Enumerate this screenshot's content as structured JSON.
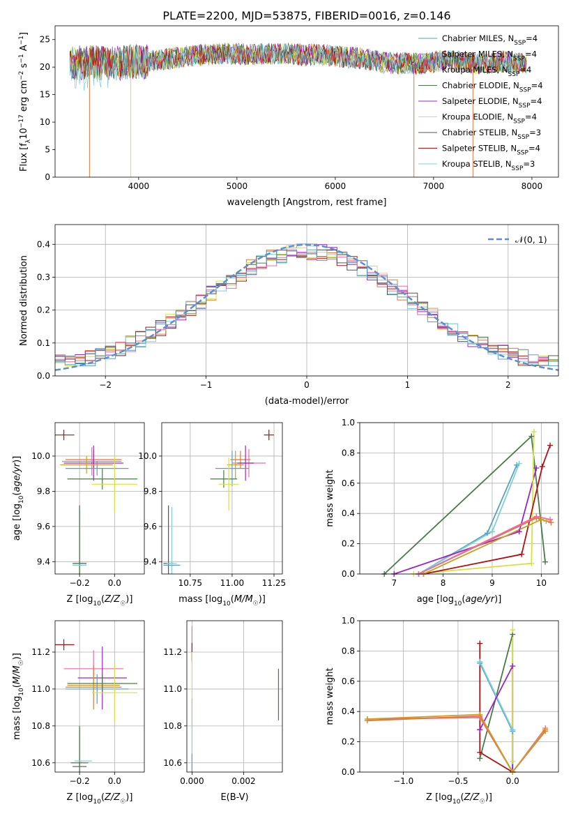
{
  "page_title": "PLATE=2200, MJD=53875, FIBERID=0016, z=0.146",
  "colors": {
    "Chabrier MILES": "#56a0c0",
    "Salpeter MILES": "#999999",
    "Kroupa MILES": "#c8a020",
    "Chabrier ELODIE": "#4a7a4a",
    "Salpeter ELODIE": "#a020c8",
    "Kroupa ELODIE": "#d8e040",
    "Chabrier STELIB": "#555555",
    "Salpeter STELIB": "#b01010",
    "Kroupa STELIB": "#7ed0d8",
    "Orange": "#e8743a",
    "Pink": "#ee6aa8",
    "Green": "#5a8a5a",
    "Normal": "#5b8dd6"
  },
  "chart_data": [
    {
      "type": "line",
      "title": "PLATE=2200, MJD=53875, FIBERID=0016, z=0.146",
      "xlabel": "wavelength [Angstrom, rest frame]",
      "ylabel": "Flux [fλ10⁻¹⁷ erg cm⁻² s⁻¹ A⁻¹]",
      "ylabel_parts": [
        "Flux [f",
        "λ",
        "10",
        "−17",
        " erg cm",
        "−2",
        " s",
        "−1",
        " A",
        "−1",
        "]"
      ],
      "xlim": [
        3150,
        8270
      ],
      "ylim": [
        0,
        27.5
      ],
      "xticks": [
        4000,
        5000,
        6000,
        7000,
        8000
      ],
      "yticks": [
        0,
        5,
        10,
        15,
        20,
        25
      ],
      "legend_position": "top-right",
      "series": [
        {
          "name": "Chabrier MILES, N_SSP=4",
          "label_main": "Chabrier MILES, N",
          "label_sub": "SSP",
          "label_tail": "=4",
          "color": "#56a0c0"
        },
        {
          "name": "Salpeter MILES, N_SSP=4",
          "label_main": "Salpeter MILES, N",
          "label_sub": "SSP",
          "label_tail": "=4",
          "color": "#999999"
        },
        {
          "name": "Kroupa MILES, N_SSP=4",
          "label_main": "Kroupa MILES, N",
          "label_sub": "SSP",
          "label_tail": "=4",
          "color": "#c8a020"
        },
        {
          "name": "Chabrier ELODIE, N_SSP=4",
          "label_main": "Chabrier ELODIE, N",
          "label_sub": "SSP",
          "label_tail": "=4",
          "color": "#4a7a4a"
        },
        {
          "name": "Salpeter ELODIE, N_SSP=4",
          "label_main": "Salpeter ELODIE, N",
          "label_sub": "SSP",
          "label_tail": "=4",
          "color": "#a020c8"
        },
        {
          "name": "Kroupa ELODIE, N_SSP=4",
          "label_main": "Kroupa ELODIE, N",
          "label_sub": "SSP",
          "label_tail": "=4",
          "color": "#d8e040"
        },
        {
          "name": "Chabrier STELIB, N_SSP=3",
          "label_main": "Chabrier STELIB, N",
          "label_sub": "SSP",
          "label_tail": "=3",
          "color": "#555555"
        },
        {
          "name": "Salpeter STELIB, N_SSP=4",
          "label_main": "Salpeter STELIB, N",
          "label_sub": "SSP",
          "label_tail": "=4",
          "color": "#b01010"
        },
        {
          "name": "Kroupa STELIB, N_SSP=3",
          "label_main": "Kroupa STELIB, N",
          "label_sub": "SSP",
          "label_tail": "=3",
          "color": "#7ed0d8"
        }
      ],
      "spectrum_envelope": {
        "x": [
          3300,
          3500,
          3700,
          3900,
          4100,
          4300,
          4500,
          4700,
          4900,
          5100,
          5300,
          5500,
          5700,
          5900,
          6100,
          6300,
          6500,
          6700,
          6900,
          7100,
          7300,
          7500,
          7700,
          7900,
          8000
        ],
        "y": [
          20.5,
          21.0,
          20.5,
          21.0,
          21.0,
          21.5,
          22.0,
          22.3,
          22.5,
          22.3,
          22.4,
          22.5,
          22.2,
          22.2,
          21.8,
          21.5,
          20.8,
          20.7,
          20.6,
          21.2,
          21.0,
          20.5,
          21.0,
          20.6,
          20.5
        ]
      },
      "noise_amplitude": 2.0,
      "drops": [
        {
          "x": 3500,
          "color": "#e8743a"
        },
        {
          "x": 3920,
          "color": "#d8e040"
        },
        {
          "x": 6800,
          "color": "#e8743a"
        },
        {
          "x": 7400,
          "color": "#e8743a"
        }
      ]
    },
    {
      "type": "histogram",
      "xlabel": "(data-model)/error",
      "ylabel": "Normed distribution",
      "xlim": [
        -2.5,
        2.5
      ],
      "ylim": [
        0,
        0.46
      ],
      "xticks": [
        -2,
        -1,
        0,
        1,
        2
      ],
      "xtick_labels": [
        "−2",
        "−1",
        "0",
        "1",
        "2"
      ],
      "yticks": [
        0.0,
        0.1,
        0.2,
        0.3,
        0.4
      ],
      "grid": true,
      "bin_width": 0.1,
      "legend_label": "𝒩(0, 1)",
      "legend_position": "top-right",
      "normal_curve": {
        "mean": 0,
        "sigma": 1,
        "color": "#5b8dd6"
      },
      "series_colors": [
        "#b01010",
        "#e8743a",
        "#a020c8",
        "#d8e040",
        "#7ed0d8",
        "#ee6aa8",
        "#555555",
        "#56a0c0"
      ]
    },
    {
      "type": "errorbar",
      "xlabel": "Z [log10(Z/Z☉)]",
      "ylabel": "age  [log10(age/yr)]",
      "xlim": [
        -0.34,
        0.17
      ],
      "ylim": [
        9.33,
        10.19
      ],
      "xticks": [
        -0.2,
        0.0
      ],
      "xtick_labels": [
        "−0.2",
        "0.0"
      ],
      "yticks": [
        9.4,
        9.6,
        9.8,
        10.0
      ],
      "grid": true,
      "points": [
        {
          "x": -0.2,
          "y": 9.39,
          "xerr": 0.04,
          "yerr": 0.33,
          "color": "#555555"
        },
        {
          "x": -0.2,
          "y": 9.39,
          "xerr": 0.03,
          "yerr": 0.3,
          "color": "#4a7a4a"
        },
        {
          "x": -0.2,
          "y": 9.38,
          "xerr": 0.04,
          "yerr": 0.0,
          "color": "#7ed0d8"
        },
        {
          "x": -0.29,
          "y": 10.12,
          "xerr": 0.06,
          "yerr": 0.03,
          "color": "#b01010"
        },
        {
          "x": -0.12,
          "y": 9.98,
          "xerr": 0.16,
          "yerr": 0.05,
          "color": "#e8743a"
        },
        {
          "x": -0.13,
          "y": 9.97,
          "xerr": 0.17,
          "yerr": 0.08,
          "color": "#ee6aa8"
        },
        {
          "x": -0.12,
          "y": 9.96,
          "xerr": 0.17,
          "yerr": 0.1,
          "color": "#a020c8"
        },
        {
          "x": -0.16,
          "y": 9.95,
          "xerr": 0.15,
          "yerr": 0.05,
          "color": "#c8a020"
        },
        {
          "x": -0.1,
          "y": 9.93,
          "xerr": 0.18,
          "yerr": 0.04,
          "color": "#56a0c0"
        },
        {
          "x": -0.07,
          "y": 9.87,
          "xerr": 0.2,
          "yerr": 0.06,
          "color": "#4a7a4a"
        },
        {
          "x": 0.0,
          "y": 9.84,
          "xerr": 0.13,
          "yerr": 0.16,
          "color": "#d8e040"
        }
      ]
    },
    {
      "type": "errorbar",
      "xlabel": "mass [log10(M/M☉)]",
      "ylabel": "",
      "xlim": [
        10.58,
        11.3
      ],
      "ylim": [
        9.33,
        10.19
      ],
      "xticks": [
        10.75,
        11.0,
        11.25
      ],
      "xtick_labels": [
        "10.75",
        "11.00",
        "11.25"
      ],
      "yticks": [
        9.4,
        9.6,
        9.8,
        10.0
      ],
      "grid": true,
      "points": [
        {
          "x": 10.62,
          "y": 9.39,
          "xerr": 0.03,
          "yerr": 0.33,
          "color": "#555555"
        },
        {
          "x": 10.64,
          "y": 9.39,
          "xerr": 0.03,
          "yerr": 0.32,
          "color": "#7ed0d8"
        },
        {
          "x": 10.64,
          "y": 9.38,
          "xerr": 0.05,
          "yerr": 0.0,
          "color": "#56a0c0"
        },
        {
          "x": 11.22,
          "y": 10.12,
          "xerr": 0.03,
          "yerr": 0.03,
          "color": "#b01010"
        },
        {
          "x": 11.05,
          "y": 9.98,
          "xerr": 0.06,
          "yerr": 0.05,
          "color": "#e8743a"
        },
        {
          "x": 11.1,
          "y": 9.96,
          "xerr": 0.1,
          "yerr": 0.08,
          "color": "#ee6aa8"
        },
        {
          "x": 11.08,
          "y": 9.96,
          "xerr": 0.05,
          "yerr": 0.1,
          "color": "#a020c8"
        },
        {
          "x": 11.02,
          "y": 9.95,
          "xerr": 0.05,
          "yerr": 0.08,
          "color": "#c8a020"
        },
        {
          "x": 11.0,
          "y": 9.93,
          "xerr": 0.1,
          "yerr": 0.1,
          "color": "#56a0c0"
        },
        {
          "x": 10.95,
          "y": 9.87,
          "xerr": 0.08,
          "yerr": 0.05,
          "color": "#4a7a4a"
        },
        {
          "x": 10.98,
          "y": 9.84,
          "xerr": 0.06,
          "yerr": 0.15,
          "color": "#d8e040"
        }
      ]
    },
    {
      "type": "line",
      "xlabel": "age  [log10(age/yr)]",
      "ylabel": "mass weight",
      "xlim": [
        6.3,
        10.35
      ],
      "ylim": [
        0,
        1.0
      ],
      "xticks": [
        7,
        8,
        9,
        10
      ],
      "yticks": [
        0.0,
        0.2,
        0.4,
        0.6,
        0.8,
        1.0
      ],
      "grid": true,
      "series": [
        {
          "color": "#4a7a4a",
          "x": [
            6.8,
            9.8,
            10.08
          ],
          "y": [
            0.0,
            0.91,
            0.08
          ]
        },
        {
          "color": "#56a0c0",
          "x": [
            7.5,
            8.9,
            9.5
          ],
          "y": [
            0.0,
            0.27,
            0.72
          ]
        },
        {
          "color": "#7ed0d8",
          "x": [
            7.5,
            9.0,
            9.55
          ],
          "y": [
            0.0,
            0.28,
            0.73
          ]
        },
        {
          "color": "#a020c8",
          "x": [
            7.0,
            9.55,
            9.9
          ],
          "y": [
            0.0,
            0.28,
            0.7
          ]
        },
        {
          "color": "#d8e040",
          "x": [
            7.4,
            9.8,
            9.85
          ],
          "y": [
            0.0,
            0.07,
            0.94
          ]
        },
        {
          "color": "#b01010",
          "x": [
            7.6,
            9.6,
            10.02,
            10.18
          ],
          "y": [
            0.0,
            0.13,
            0.71,
            0.85
          ]
        },
        {
          "color": "#e8743a",
          "x": [
            7.5,
            9.9,
            10.2
          ],
          "y": [
            0.0,
            0.37,
            0.34
          ]
        },
        {
          "color": "#ee6aa8",
          "x": [
            7.5,
            9.9,
            10.18
          ],
          "y": [
            0.0,
            0.38,
            0.36
          ]
        },
        {
          "color": "#c8a020",
          "x": [
            7.6,
            10.0,
            10.1
          ],
          "y": [
            0.0,
            0.36,
            0.35
          ]
        }
      ]
    },
    {
      "type": "errorbar",
      "xlabel": "Z [log10(Z/Z☉)]",
      "ylabel": "mass [log10(M/M☉)]",
      "xlim": [
        -0.34,
        0.17
      ],
      "ylim": [
        10.55,
        11.37
      ],
      "xticks": [
        -0.2,
        0.0
      ],
      "xtick_labels": [
        "−0.2",
        "0.0"
      ],
      "yticks": [
        10.6,
        10.8,
        11.0,
        11.2
      ],
      "grid": true,
      "points": [
        {
          "x": -0.2,
          "y": 10.58,
          "xerr": 0.04,
          "yerr": 0.21,
          "color": "#555555"
        },
        {
          "x": -0.2,
          "y": 10.6,
          "xerr": 0.05,
          "yerr": 0.2,
          "color": "#4a7a4a"
        },
        {
          "x": -0.18,
          "y": 10.61,
          "xerr": 0.05,
          "yerr": 0.0,
          "color": "#7ed0d8"
        },
        {
          "x": -0.29,
          "y": 11.24,
          "xerr": 0.06,
          "yerr": 0.03,
          "color": "#b01010"
        },
        {
          "x": -0.12,
          "y": 11.11,
          "xerr": 0.17,
          "yerr": 0.1,
          "color": "#ee6aa8"
        },
        {
          "x": -0.07,
          "y": 11.06,
          "xerr": 0.14,
          "yerr": 0.17,
          "color": "#a020c8"
        },
        {
          "x": -0.12,
          "y": 11.01,
          "xerr": 0.16,
          "yerr": 0.12,
          "color": "#e8743a"
        },
        {
          "x": -0.12,
          "y": 11.02,
          "xerr": 0.15,
          "yerr": 0.05,
          "color": "#c8a020"
        },
        {
          "x": -0.1,
          "y": 11.0,
          "xerr": 0.18,
          "yerr": 0.08,
          "color": "#56a0c0"
        },
        {
          "x": -0.07,
          "y": 11.03,
          "xerr": 0.2,
          "yerr": 0.05,
          "color": "#4a7a4a"
        },
        {
          "x": 0.0,
          "y": 10.98,
          "xerr": 0.13,
          "yerr": 0.16,
          "color": "#d8e040"
        }
      ]
    },
    {
      "type": "errorbar",
      "xlabel": "E(B-V)",
      "ylabel": "",
      "xlim": [
        -0.0002,
        0.0035
      ],
      "ylim": [
        10.55,
        11.37
      ],
      "xticks": [
        0.0,
        0.002
      ],
      "xtick_labels": [
        "0.000",
        "0.002"
      ],
      "yticks": [
        10.6,
        10.8,
        11.0,
        11.2
      ],
      "grid": true,
      "points": [
        {
          "x": 0.0,
          "y": 11.24,
          "xerr": 0.0,
          "yerr": 0.1,
          "color": "#ee6aa8"
        },
        {
          "x": 0.0,
          "y": 11.2,
          "xerr": 0.0,
          "yerr": 0.05,
          "color": "#b01010"
        },
        {
          "x": 0.0,
          "y": 11.0,
          "xerr": 0.0,
          "yerr": 0.2,
          "color": "#d8e040"
        },
        {
          "x": 0.0,
          "y": 10.75,
          "xerr": 0.0,
          "yerr": 0.2,
          "color": "#7ed0d8"
        },
        {
          "x": 0.0,
          "y": 10.6,
          "xerr": 0.0,
          "yerr": 0.05,
          "color": "#56a0c0"
        },
        {
          "x": 0.00335,
          "y": 10.97,
          "xerr": 0.0,
          "yerr": 0.14,
          "color": "#4a7a4a"
        }
      ]
    },
    {
      "type": "line",
      "xlabel": "Z [log10(Z/Z☉)]",
      "ylabel": "mass weight",
      "xlim": [
        -1.4,
        0.42
      ],
      "ylim": [
        0,
        1.0
      ],
      "xticks": [
        -1.0,
        -0.5,
        0.0
      ],
      "xtick_labels": [
        "−1.0",
        "−0.5",
        "0.0"
      ],
      "yticks": [
        0.0,
        0.2,
        0.4,
        0.6,
        0.8,
        1.0
      ],
      "grid": true,
      "series": [
        {
          "color": "#b01010",
          "x": [
            -0.3,
            -0.3,
            0.0
          ],
          "y": [
            0.85,
            0.13,
            0.0
          ]
        },
        {
          "color": "#4a7a4a",
          "x": [
            -0.3,
            0.0,
            0.0
          ],
          "y": [
            0.09,
            0.91,
            0.0
          ]
        },
        {
          "color": "#56a0c0",
          "x": [
            -0.3,
            0.0,
            0.0
          ],
          "y": [
            0.72,
            0.27,
            0.0
          ]
        },
        {
          "color": "#7ed0d8",
          "x": [
            -0.3,
            0.0,
            0.0
          ],
          "y": [
            0.73,
            0.28,
            0.0
          ]
        },
        {
          "color": "#a020c8",
          "x": [
            -0.3,
            0.0,
            0.0
          ],
          "y": [
            0.28,
            0.7,
            0.0
          ]
        },
        {
          "color": "#d8e040",
          "x": [
            0.0,
            0.0
          ],
          "y": [
            0.94,
            0.07
          ]
        },
        {
          "color": "#ee6aa8",
          "x": [
            -1.33,
            -0.3,
            0.0,
            0.3
          ],
          "y": [
            0.35,
            0.36,
            0.0,
            0.29
          ]
        },
        {
          "color": "#e8743a",
          "x": [
            -1.33,
            -0.3,
            0.0,
            0.3
          ],
          "y": [
            0.34,
            0.37,
            0.0,
            0.27
          ]
        },
        {
          "color": "#c8a020",
          "x": [
            -1.33,
            -0.3,
            0.0,
            0.3
          ],
          "y": [
            0.35,
            0.38,
            0.0,
            0.28
          ]
        }
      ]
    }
  ]
}
